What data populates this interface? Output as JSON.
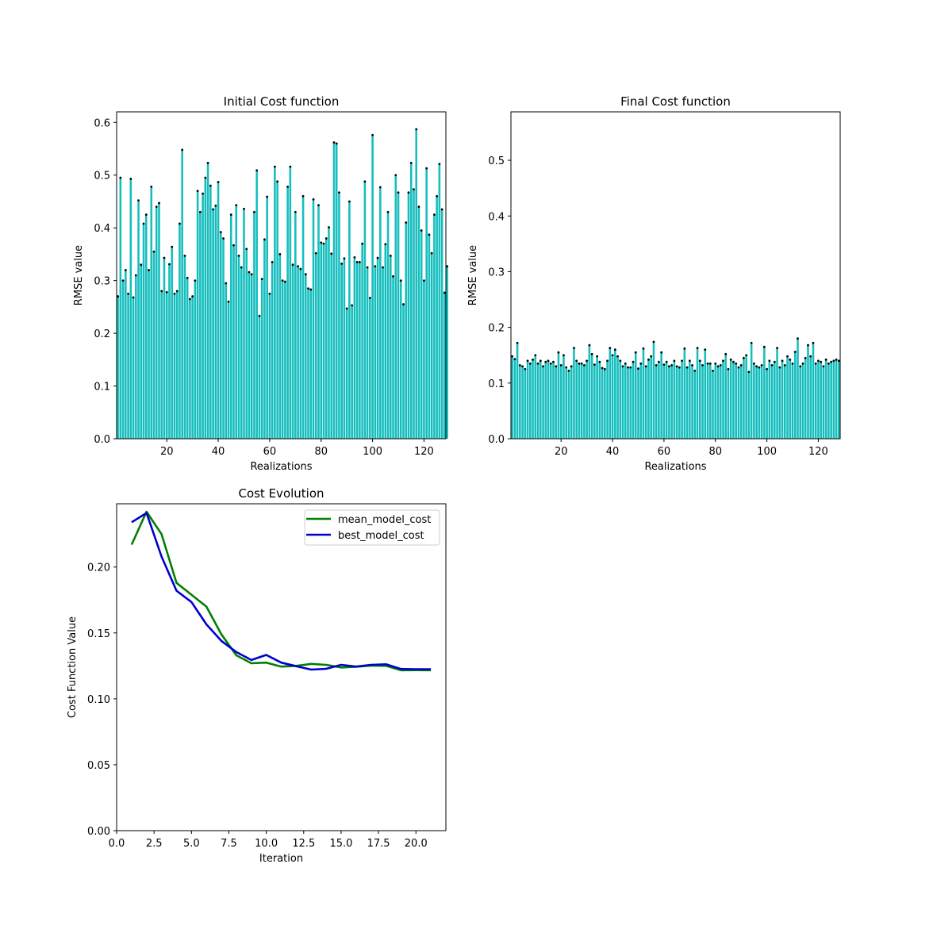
{
  "chart_data": [
    {
      "type": "bar",
      "title": "Initial Cost function",
      "xlabel": "Realizations",
      "ylabel": "RMSE value",
      "xlim": [
        0.5,
        128.5
      ],
      "ylim": [
        0,
        0.62
      ],
      "xticks": [
        20,
        40,
        60,
        80,
        100,
        120
      ],
      "yticks": [
        0.0,
        0.1,
        0.2,
        0.3,
        0.4,
        0.5,
        0.6
      ],
      "ytick_labels": [
        "0.0",
        "0.1",
        "0.2",
        "0.3",
        "0.4",
        "0.5",
        "0.6"
      ],
      "grid": false,
      "bar_color": "#17bebe",
      "marker_color": "#000000",
      "values": [
        0.27,
        0.495,
        0.3,
        0.32,
        0.275,
        0.493,
        0.268,
        0.31,
        0.452,
        0.33,
        0.408,
        0.425,
        0.32,
        0.478,
        0.355,
        0.44,
        0.447,
        0.28,
        0.343,
        0.278,
        0.331,
        0.364,
        0.275,
        0.28,
        0.408,
        0.548,
        0.347,
        0.305,
        0.265,
        0.27,
        0.3,
        0.47,
        0.43,
        0.465,
        0.495,
        0.523,
        0.48,
        0.435,
        0.442,
        0.487,
        0.392,
        0.38,
        0.295,
        0.26,
        0.425,
        0.367,
        0.443,
        0.347,
        0.325,
        0.436,
        0.36,
        0.316,
        0.312,
        0.43,
        0.509,
        0.233,
        0.303,
        0.378,
        0.459,
        0.275,
        0.335,
        0.516,
        0.488,
        0.35,
        0.3,
        0.298,
        0.478,
        0.516,
        0.33,
        0.43,
        0.327,
        0.322,
        0.46,
        0.312,
        0.285,
        0.283,
        0.454,
        0.352,
        0.443,
        0.372,
        0.37,
        0.38,
        0.401,
        0.351,
        0.562,
        0.56,
        0.467,
        0.332,
        0.342,
        0.247,
        0.45,
        0.253,
        0.344,
        0.335,
        0.335,
        0.37,
        0.488,
        0.325,
        0.267,
        0.576,
        0.327,
        0.343,
        0.477,
        0.325,
        0.369,
        0.43,
        0.347,
        0.308,
        0.5,
        0.467,
        0.3,
        0.255,
        0.41,
        0.467,
        0.523,
        0.473,
        0.587,
        0.44,
        0.395,
        0.3,
        0.513,
        0.387,
        0.352,
        0.425,
        0.46,
        0.521,
        0.435,
        0.277,
        0.327
      ]
    },
    {
      "type": "bar",
      "title": "Final Cost function",
      "xlabel": "Realizations",
      "ylabel": "RMSE value",
      "xlim": [
        0.5,
        128.5
      ],
      "ylim": [
        0,
        0.587
      ],
      "xticks": [
        20,
        40,
        60,
        80,
        100,
        120
      ],
      "yticks": [
        0.0,
        0.1,
        0.2,
        0.3,
        0.4,
        0.5
      ],
      "ytick_labels": [
        "0.0",
        "0.1",
        "0.2",
        "0.3",
        "0.4",
        "0.5"
      ],
      "grid": false,
      "bar_color": "#17bebe",
      "marker_color": "#000000",
      "values": [
        0.148,
        0.143,
        0.172,
        0.132,
        0.13,
        0.125,
        0.14,
        0.135,
        0.142,
        0.15,
        0.135,
        0.14,
        0.13,
        0.138,
        0.14,
        0.135,
        0.138,
        0.13,
        0.155,
        0.132,
        0.15,
        0.128,
        0.122,
        0.13,
        0.163,
        0.14,
        0.135,
        0.135,
        0.132,
        0.14,
        0.168,
        0.152,
        0.133,
        0.148,
        0.138,
        0.127,
        0.125,
        0.14,
        0.163,
        0.15,
        0.16,
        0.148,
        0.14,
        0.13,
        0.135,
        0.128,
        0.128,
        0.138,
        0.155,
        0.126,
        0.135,
        0.162,
        0.13,
        0.142,
        0.148,
        0.174,
        0.132,
        0.138,
        0.155,
        0.133,
        0.138,
        0.13,
        0.132,
        0.14,
        0.13,
        0.128,
        0.14,
        0.162,
        0.128,
        0.14,
        0.132,
        0.122,
        0.163,
        0.14,
        0.132,
        0.16,
        0.135,
        0.135,
        0.122,
        0.135,
        0.13,
        0.132,
        0.14,
        0.152,
        0.125,
        0.142,
        0.138,
        0.135,
        0.128,
        0.132,
        0.145,
        0.15,
        0.12,
        0.172,
        0.135,
        0.13,
        0.128,
        0.132,
        0.165,
        0.125,
        0.14,
        0.132,
        0.138,
        0.163,
        0.128,
        0.14,
        0.132,
        0.148,
        0.142,
        0.135,
        0.156,
        0.18,
        0.13,
        0.135,
        0.145,
        0.168,
        0.148,
        0.172,
        0.135,
        0.14,
        0.138,
        0.13,
        0.142,
        0.135,
        0.138,
        0.14,
        0.142,
        0.14
      ]
    },
    {
      "type": "line",
      "title": "Cost Evolution",
      "xlabel": "Iteration",
      "ylabel": "Cost Function Value",
      "xlim": [
        0,
        22
      ],
      "ylim": [
        0,
        0.248
      ],
      "xticks": [
        0,
        2.5,
        5,
        7.5,
        10,
        12.5,
        15,
        17.5,
        20
      ],
      "xtick_labels": [
        "0.0",
        "2.5",
        "5.0",
        "7.5",
        "10.0",
        "12.5",
        "15.0",
        "17.5",
        "20.0"
      ],
      "yticks": [
        0,
        0.05,
        0.1,
        0.15,
        0.2
      ],
      "ytick_labels": [
        "0.00",
        "0.05",
        "0.10",
        "0.15",
        "0.20"
      ],
      "grid": false,
      "legend_position": "top-right",
      "x": [
        1,
        2,
        3,
        4,
        5,
        6,
        7,
        8,
        9,
        10,
        11,
        12,
        13,
        14,
        15,
        16,
        17,
        18,
        19,
        20,
        21
      ],
      "series": [
        {
          "name": "mean_model_cost",
          "color": "#008000",
          "values": [
            0.217,
            0.242,
            0.225,
            0.188,
            0.179,
            0.17,
            0.149,
            0.133,
            0.127,
            0.1275,
            0.1245,
            0.125,
            0.1265,
            0.1258,
            0.1238,
            0.1243,
            0.1252,
            0.125,
            0.1217,
            0.1218,
            0.1217
          ]
        },
        {
          "name": "best_model_cost",
          "color": "#0000cd",
          "values": [
            0.234,
            0.241,
            0.208,
            0.182,
            0.1735,
            0.1565,
            0.144,
            0.1355,
            0.1295,
            0.1333,
            0.1275,
            0.1248,
            0.1222,
            0.1228,
            0.1258,
            0.1245,
            0.1258,
            0.1262,
            0.1227,
            0.1225,
            0.1225
          ]
        }
      ]
    }
  ]
}
